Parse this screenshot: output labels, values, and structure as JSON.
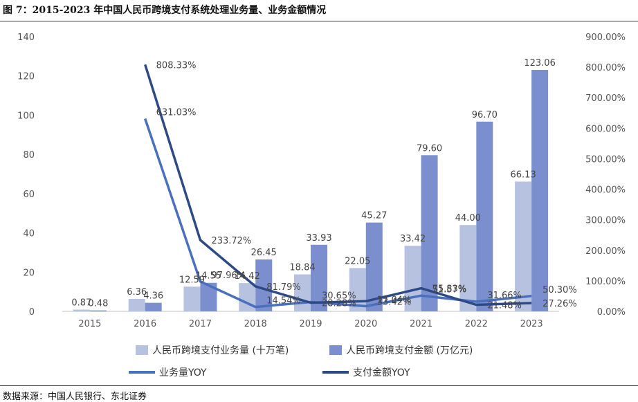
{
  "header": {
    "title": "图 7：2015-2023 年中国人民币跨境支付系统处理业务量、业务金额情况"
  },
  "footer": {
    "source": "数据来源：中国人民银行、东北证券"
  },
  "colors": {
    "bar1": "#b7c2e0",
    "bar2": "#7b8fcf",
    "line1": "#4a6fbd",
    "line2": "#2e4a85",
    "axis_text": "#555555"
  },
  "chart_data": {
    "type": "bar",
    "categories": [
      "2015",
      "2016",
      "2017",
      "2018",
      "2019",
      "2020",
      "2021",
      "2022",
      "2023"
    ],
    "ylim": [
      0,
      140
    ],
    "y_ticks": [
      "0",
      "20",
      "40",
      "60",
      "80",
      "100",
      "120",
      "140"
    ],
    "y2lim": [
      0,
      900
    ],
    "y2_ticks": [
      "0.00%",
      "100.00%",
      "200.00%",
      "300.00%",
      "400.00%",
      "500.00%",
      "600.00%",
      "700.00%",
      "800.00%",
      "900.00%"
    ],
    "series": [
      {
        "name": "人民币跨境支付业务量 (十万笔)",
        "kind": "bar",
        "axis": "left",
        "values": [
          0.87,
          6.36,
          12.59,
          14.42,
          18.84,
          22.05,
          33.42,
          44.0,
          66.13
        ],
        "labels": [
          "0.87",
          "6.36",
          "12.59",
          "14.42",
          "18.84",
          "22.05",
          "33.42",
          "44.00",
          "66.13"
        ]
      },
      {
        "name": "人民币跨境支付金额 (万亿元)",
        "kind": "bar",
        "axis": "left",
        "values": [
          0.48,
          4.36,
          14.55,
          26.45,
          33.93,
          45.27,
          79.6,
          96.7,
          123.06
        ],
        "labels": [
          "0.48",
          "4.36",
          "14.55",
          "26.45",
          "33.93",
          "45.27",
          "79.60",
          "96.70",
          "123.06"
        ]
      },
      {
        "name": "业务量YOY",
        "kind": "line",
        "axis": "right",
        "values": [
          null,
          631.03,
          97.96,
          14.54,
          30.65,
          17.04,
          51.57,
          31.66,
          50.3
        ],
        "labels": [
          "",
          "631.03%",
          "97.96%",
          "14.54%",
          "30.65%",
          "17.04%",
          "51.57%",
          "31.66%",
          "50.30%"
        ]
      },
      {
        "name": "支付金额YOY",
        "kind": "line",
        "axis": "right",
        "values": [
          null,
          808.33,
          233.72,
          81.79,
          28.28,
          33.42,
          75.83,
          21.48,
          27.26
        ],
        "labels": [
          "",
          "808.33%",
          "233.72%",
          "81.79%",
          "28.28%",
          "33.42%",
          "75.83%",
          "21.48%",
          "27.26%"
        ]
      }
    ]
  }
}
